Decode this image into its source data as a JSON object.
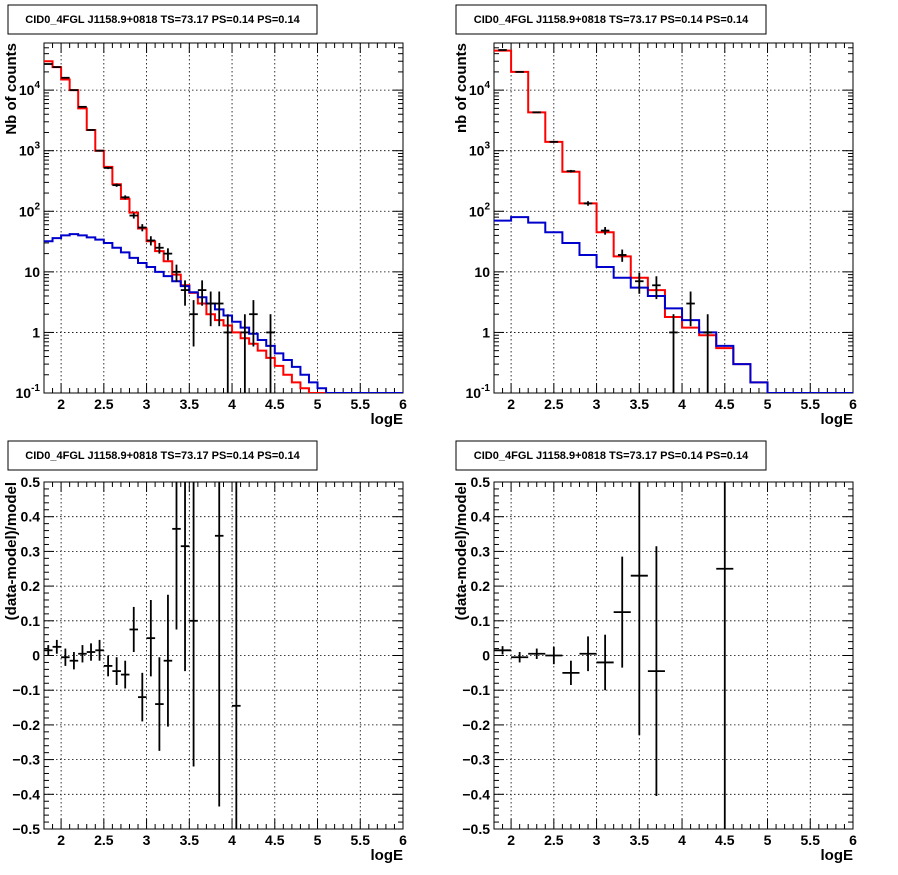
{
  "chart_data": [
    {
      "type": "line",
      "title": "CID0_4FGL J1158.9+0818 TS=73.17 PS=0.14 PS=0.14",
      "xlabel": "logE",
      "ylabel": "Nb of counts",
      "log_y": true,
      "xlim": [
        1.8,
        6
      ],
      "ylim": [
        0.1,
        60000
      ],
      "grid": true,
      "x_ticks": [
        "2",
        "2.5",
        "3",
        "3.5",
        "4",
        "4.5",
        "5",
        "5.5",
        "6"
      ],
      "y_ticks": [
        "10^-1",
        "1",
        "10",
        "10^2",
        "10^3",
        "10^4"
      ],
      "bin_edges": [
        1.8,
        1.9,
        2.0,
        2.1,
        2.2,
        2.3,
        2.4,
        2.5,
        2.6,
        2.7,
        2.8,
        2.9,
        3.0,
        3.1,
        3.2,
        3.3,
        3.4,
        3.5,
        3.6,
        3.7,
        3.8,
        3.9,
        4.0,
        4.1,
        4.2,
        4.3,
        4.4,
        4.5,
        4.6,
        4.7,
        4.8,
        4.9,
        5.0,
        5.1,
        5.2,
        5.3,
        5.4,
        5.5,
        5.6,
        5.7,
        5.8,
        5.9,
        6.0
      ],
      "series": [
        {
          "color": "#ff0000",
          "values": [
            30000,
            24000,
            15000,
            10000,
            5000,
            2200,
            1000,
            540,
            280,
            160,
            95,
            52,
            32,
            22,
            15,
            9,
            6,
            4.5,
            3,
            2,
            1.6,
            1.3,
            1.0,
            0.8,
            0.65,
            0.5,
            0.38,
            0.28,
            0.2,
            0.15,
            0.12,
            0.1,
            0.1,
            0.1,
            0.1,
            0.1,
            0.1,
            0.1,
            0.1,
            0.1,
            0.1,
            0.1
          ]
        },
        {
          "color": "#0000cc",
          "values": [
            32,
            36,
            40,
            42,
            40,
            37,
            34,
            30,
            25,
            21,
            17,
            14,
            12,
            10,
            8.5,
            7,
            5.8,
            4.6,
            3.8,
            3.0,
            2.4,
            1.9,
            1.5,
            1.2,
            0.95,
            0.75,
            0.6,
            0.45,
            0.35,
            0.27,
            0.2,
            0.15,
            0.12,
            0.1,
            0.1,
            0.1,
            0.1,
            0.1,
            0.1,
            0.1,
            0.1,
            0.1
          ]
        }
      ],
      "data_points": [
        {
          "x": 1.85,
          "y": 27000
        },
        {
          "x": 1.95,
          "y": 24000
        },
        {
          "x": 2.05,
          "y": 16000
        },
        {
          "x": 2.15,
          "y": 10000
        },
        {
          "x": 2.25,
          "y": 5300
        },
        {
          "x": 2.35,
          "y": 2200
        },
        {
          "x": 2.45,
          "y": 1000
        },
        {
          "x": 2.55,
          "y": 520
        },
        {
          "x": 2.65,
          "y": 270
        },
        {
          "x": 2.75,
          "y": 170
        },
        {
          "x": 2.85,
          "y": 85
        },
        {
          "x": 2.95,
          "y": 54
        },
        {
          "x": 3.05,
          "y": 33
        },
        {
          "x": 3.15,
          "y": 25
        },
        {
          "x": 3.25,
          "y": 20
        },
        {
          "x": 3.35,
          "y": 10
        },
        {
          "x": 3.45,
          "y": 5
        },
        {
          "x": 3.55,
          "y": 2
        },
        {
          "x": 3.65,
          "y": 5
        },
        {
          "x": 3.75,
          "y": 3
        },
        {
          "x": 3.85,
          "y": 3
        },
        {
          "x": 3.95,
          "y": 1
        },
        {
          "x": 4.15,
          "y": 1
        },
        {
          "x": 4.25,
          "y": 2
        },
        {
          "x": 4.45,
          "y": 1
        }
      ]
    },
    {
      "type": "line",
      "title": "CID0_4FGL J1158.9+0818 TS=73.17 PS=0.14 PS=0.14",
      "xlabel": "logE",
      "ylabel": "nb of counts",
      "log_y": true,
      "xlim": [
        1.8,
        6
      ],
      "ylim": [
        0.1,
        60000
      ],
      "grid": true,
      "x_ticks": [
        "2",
        "2.5",
        "3",
        "3.5",
        "4",
        "4.5",
        "5",
        "5.5",
        "6"
      ],
      "y_ticks": [
        "10^-1",
        "1",
        "10",
        "10^2",
        "10^3",
        "10^4"
      ],
      "bin_edges": [
        1.8,
        2.0,
        2.2,
        2.4,
        2.6,
        2.8,
        3.0,
        3.2,
        3.4,
        3.6,
        3.8,
        4.0,
        4.2,
        4.4,
        4.6,
        4.8,
        5.0,
        5.2,
        5.4,
        5.6,
        5.8,
        6.0
      ],
      "series": [
        {
          "color": "#ff0000",
          "values": [
            45000,
            20000,
            4300,
            1400,
            450,
            135,
            45,
            18,
            8,
            5,
            1.8,
            1.2,
            0.9,
            0.55,
            0.3,
            0.15,
            0.1,
            0.1,
            0.1,
            0.1,
            0.1
          ]
        },
        {
          "color": "#0000cc",
          "values": [
            70,
            80,
            65,
            45,
            30,
            19,
            12,
            8,
            5.5,
            4,
            2.5,
            1.6,
            1.0,
            0.6,
            0.3,
            0.15,
            0.1,
            0.1,
            0.1,
            0.1,
            0.1
          ]
        }
      ],
      "data_points": [
        {
          "x": 1.9,
          "y": 46000
        },
        {
          "x": 2.1,
          "y": 20000
        },
        {
          "x": 2.3,
          "y": 4300
        },
        {
          "x": 2.5,
          "y": 1400
        },
        {
          "x": 2.7,
          "y": 460
        },
        {
          "x": 2.9,
          "y": 135
        },
        {
          "x": 3.1,
          "y": 48
        },
        {
          "x": 3.3,
          "y": 19
        },
        {
          "x": 3.5,
          "y": 7
        },
        {
          "x": 3.7,
          "y": 6
        },
        {
          "x": 3.9,
          "y": 1
        },
        {
          "x": 4.1,
          "y": 3
        },
        {
          "x": 4.3,
          "y": 1
        }
      ]
    },
    {
      "type": "scatter",
      "title": "CID0_4FGL J1158.9+0818 TS=73.17 PS=0.14 PS=0.14",
      "xlabel": "logE",
      "ylabel": "(data-model)/model",
      "xlim": [
        1.8,
        6
      ],
      "ylim": [
        -0.5,
        0.5
      ],
      "grid": true,
      "x_ticks": [
        "2",
        "2.5",
        "3",
        "3.5",
        "4",
        "4.5",
        "5",
        "5.5",
        "6"
      ],
      "y_ticks": [
        "−0.5",
        "−0.4",
        "−0.3",
        "−0.2",
        "−0.1",
        "0",
        "0.1",
        "0.2",
        "0.3",
        "0.4",
        "0.5"
      ],
      "points": [
        {
          "x": 1.85,
          "y": 0.015,
          "err": 0.015
        },
        {
          "x": 1.95,
          "y": 0.025,
          "err": 0.02
        },
        {
          "x": 2.05,
          "y": -0.005,
          "err": 0.025
        },
        {
          "x": 2.15,
          "y": -0.015,
          "err": 0.025
        },
        {
          "x": 2.25,
          "y": 0.005,
          "err": 0.025
        },
        {
          "x": 2.35,
          "y": 0.01,
          "err": 0.025
        },
        {
          "x": 2.45,
          "y": 0.015,
          "err": 0.03
        },
        {
          "x": 2.55,
          "y": -0.03,
          "err": 0.03
        },
        {
          "x": 2.65,
          "y": -0.045,
          "err": 0.04
        },
        {
          "x": 2.75,
          "y": -0.055,
          "err": 0.04
        },
        {
          "x": 2.85,
          "y": 0.075,
          "err": 0.065
        },
        {
          "x": 2.95,
          "y": -0.12,
          "err": 0.07
        },
        {
          "x": 3.05,
          "y": 0.05,
          "err": 0.11
        },
        {
          "x": 3.15,
          "y": -0.14,
          "err": 0.135
        },
        {
          "x": 3.25,
          "y": -0.015,
          "err": 0.19
        },
        {
          "x": 3.35,
          "y": 0.365,
          "err": 0.29
        },
        {
          "x": 3.45,
          "y": 0.315,
          "err": 0.36
        },
        {
          "x": 3.55,
          "y": 0.1,
          "err": 0.42
        },
        {
          "x": 3.85,
          "y": 0.345,
          "err": 0.78
        },
        {
          "x": 4.05,
          "y": -0.145,
          "err": 1.0
        }
      ]
    },
    {
      "type": "scatter",
      "title": "CID0_4FGL J1158.9+0818 TS=73.17 PS=0.14 PS=0.14",
      "xlabel": "logE",
      "ylabel": "(data-model)/model",
      "xlim": [
        1.8,
        6
      ],
      "ylim": [
        -0.5,
        0.5
      ],
      "grid": true,
      "x_ticks": [
        "2",
        "2.5",
        "3",
        "3.5",
        "4",
        "4.5",
        "5",
        "5.5",
        "6"
      ],
      "y_ticks": [
        "−0.5",
        "−0.4",
        "−0.3",
        "−0.2",
        "−0.1",
        "0",
        "0.1",
        "0.2",
        "0.3",
        "0.4",
        "0.5"
      ],
      "points": [
        {
          "x": 1.9,
          "y": 0.015,
          "err": 0.012
        },
        {
          "x": 2.1,
          "y": -0.005,
          "err": 0.015
        },
        {
          "x": 2.3,
          "y": 0.005,
          "err": 0.015
        },
        {
          "x": 2.5,
          "y": 0.0,
          "err": 0.025
        },
        {
          "x": 2.7,
          "y": -0.05,
          "err": 0.035
        },
        {
          "x": 2.9,
          "y": 0.005,
          "err": 0.05
        },
        {
          "x": 3.1,
          "y": -0.02,
          "err": 0.08
        },
        {
          "x": 3.3,
          "y": 0.125,
          "err": 0.16
        },
        {
          "x": 3.5,
          "y": 0.23,
          "err": 0.46
        },
        {
          "x": 3.7,
          "y": -0.045,
          "err": 0.36
        },
        {
          "x": 4.5,
          "y": 0.25,
          "err": 1.0
        }
      ]
    }
  ]
}
